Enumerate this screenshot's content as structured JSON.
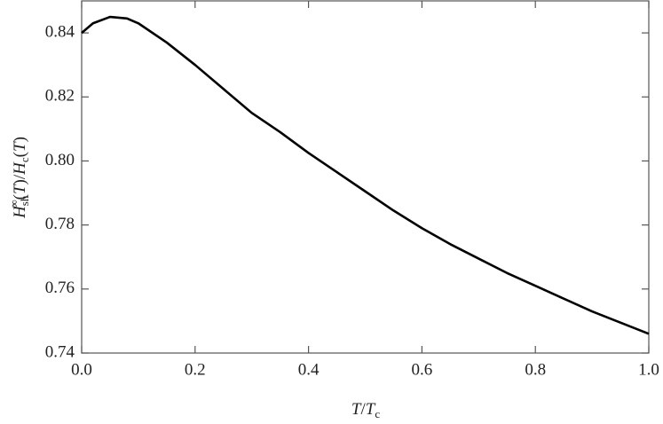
{
  "chart_data": {
    "type": "line",
    "xlabel": [
      "T",
      "/",
      "T",
      "c"
    ],
    "ylabel": [
      "H",
      "sh",
      "∞",
      "(",
      "T",
      ")/",
      "H",
      "c",
      "(",
      "T",
      ")"
    ],
    "x": [
      0,
      0.02,
      0.05,
      0.08,
      0.1,
      0.15,
      0.2,
      0.25,
      0.3,
      0.35,
      0.4,
      0.45,
      0.5,
      0.55,
      0.6,
      0.65,
      0.7,
      0.75,
      0.8,
      0.85,
      0.9,
      0.95,
      1.0
    ],
    "series": [
      {
        "color": "#000000",
        "values": [
          0.84,
          0.843,
          0.845,
          0.8445,
          0.843,
          0.837,
          0.83,
          0.8225,
          0.815,
          0.809,
          0.8025,
          0.7965,
          0.7905,
          0.7845,
          0.779,
          0.774,
          0.7695,
          0.765,
          0.761,
          0.757,
          0.753,
          0.7495,
          0.746
        ]
      }
    ],
    "xlim": [
      0,
      1
    ],
    "xticks": [
      {
        "value": 0,
        "label": "0.0"
      },
      {
        "value": 0.2,
        "label": "0.2"
      },
      {
        "value": 0.4,
        "label": "0.4"
      },
      {
        "value": 0.6,
        "label": "0.6"
      },
      {
        "value": 0.8,
        "label": "0.8"
      },
      {
        "value": 1,
        "label": "1.0"
      }
    ],
    "ylim": [
      0.74,
      0.85
    ],
    "yticks": [
      0.74,
      0.76,
      0.78,
      {
        "value": 0.8,
        "label": "0.80"
      },
      0.82,
      0.84
    ],
    "grid": false
  }
}
